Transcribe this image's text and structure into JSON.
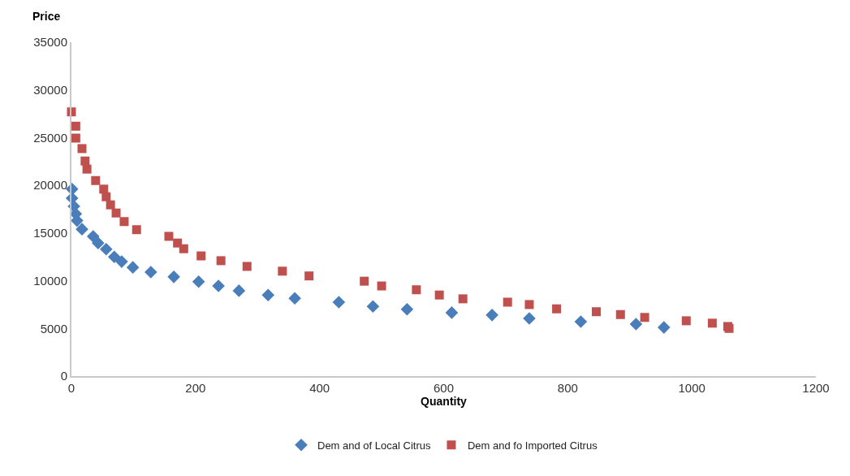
{
  "chart_data": {
    "type": "scatter",
    "xlabel": "Quantity",
    "ylabel": "Price",
    "xlim": [
      0,
      1200
    ],
    "xticks": [
      0,
      200,
      400,
      600,
      800,
      1000,
      1200
    ],
    "ylim": [
      0,
      35000
    ],
    "yticks": [
      0,
      5000,
      10000,
      15000,
      20000,
      25000,
      30000,
      35000
    ],
    "grid": false,
    "legend": "bottom",
    "series": [
      {
        "name": "Dem and of Local Citrus",
        "color": "#4a7ebb",
        "marker": "diamond",
        "x": [
          1,
          1,
          4,
          7,
          9,
          17,
          35,
          43,
          56,
          69,
          81,
          99,
          128,
          165,
          205,
          237,
          270,
          317,
          360,
          431,
          486,
          541,
          613,
          678,
          738,
          821,
          910,
          955
        ],
        "values": [
          19600,
          18650,
          17800,
          17000,
          16300,
          15400,
          14650,
          13950,
          13300,
          12500,
          12000,
          11400,
          10900,
          10400,
          9900,
          9450,
          8950,
          8500,
          8150,
          7750,
          7300,
          7000,
          6650,
          6400,
          6050,
          5700,
          5450,
          5100
        ]
      },
      {
        "name": "Dem and fo Imported Citrus",
        "color": "#c0504d",
        "marker": "square",
        "x": [
          0,
          7,
          7,
          17,
          22,
          25,
          39,
          52,
          56,
          63,
          72,
          85,
          105,
          157,
          171,
          181,
          209,
          241,
          283,
          340,
          383,
          472,
          500,
          556,
          593,
          631,
          703,
          738,
          782,
          846,
          885,
          924,
          991,
          1033,
          1058,
          1060
        ],
        "values": [
          27700,
          26200,
          24950,
          23850,
          22550,
          21700,
          20500,
          19600,
          18800,
          17950,
          17100,
          16200,
          15350,
          14650,
          13950,
          13350,
          12600,
          12100,
          11500,
          11000,
          10500,
          9950,
          9450,
          9050,
          8500,
          8100,
          7750,
          7500,
          7050,
          6750,
          6450,
          6150,
          5800,
          5550,
          5200,
          5000
        ]
      }
    ]
  }
}
